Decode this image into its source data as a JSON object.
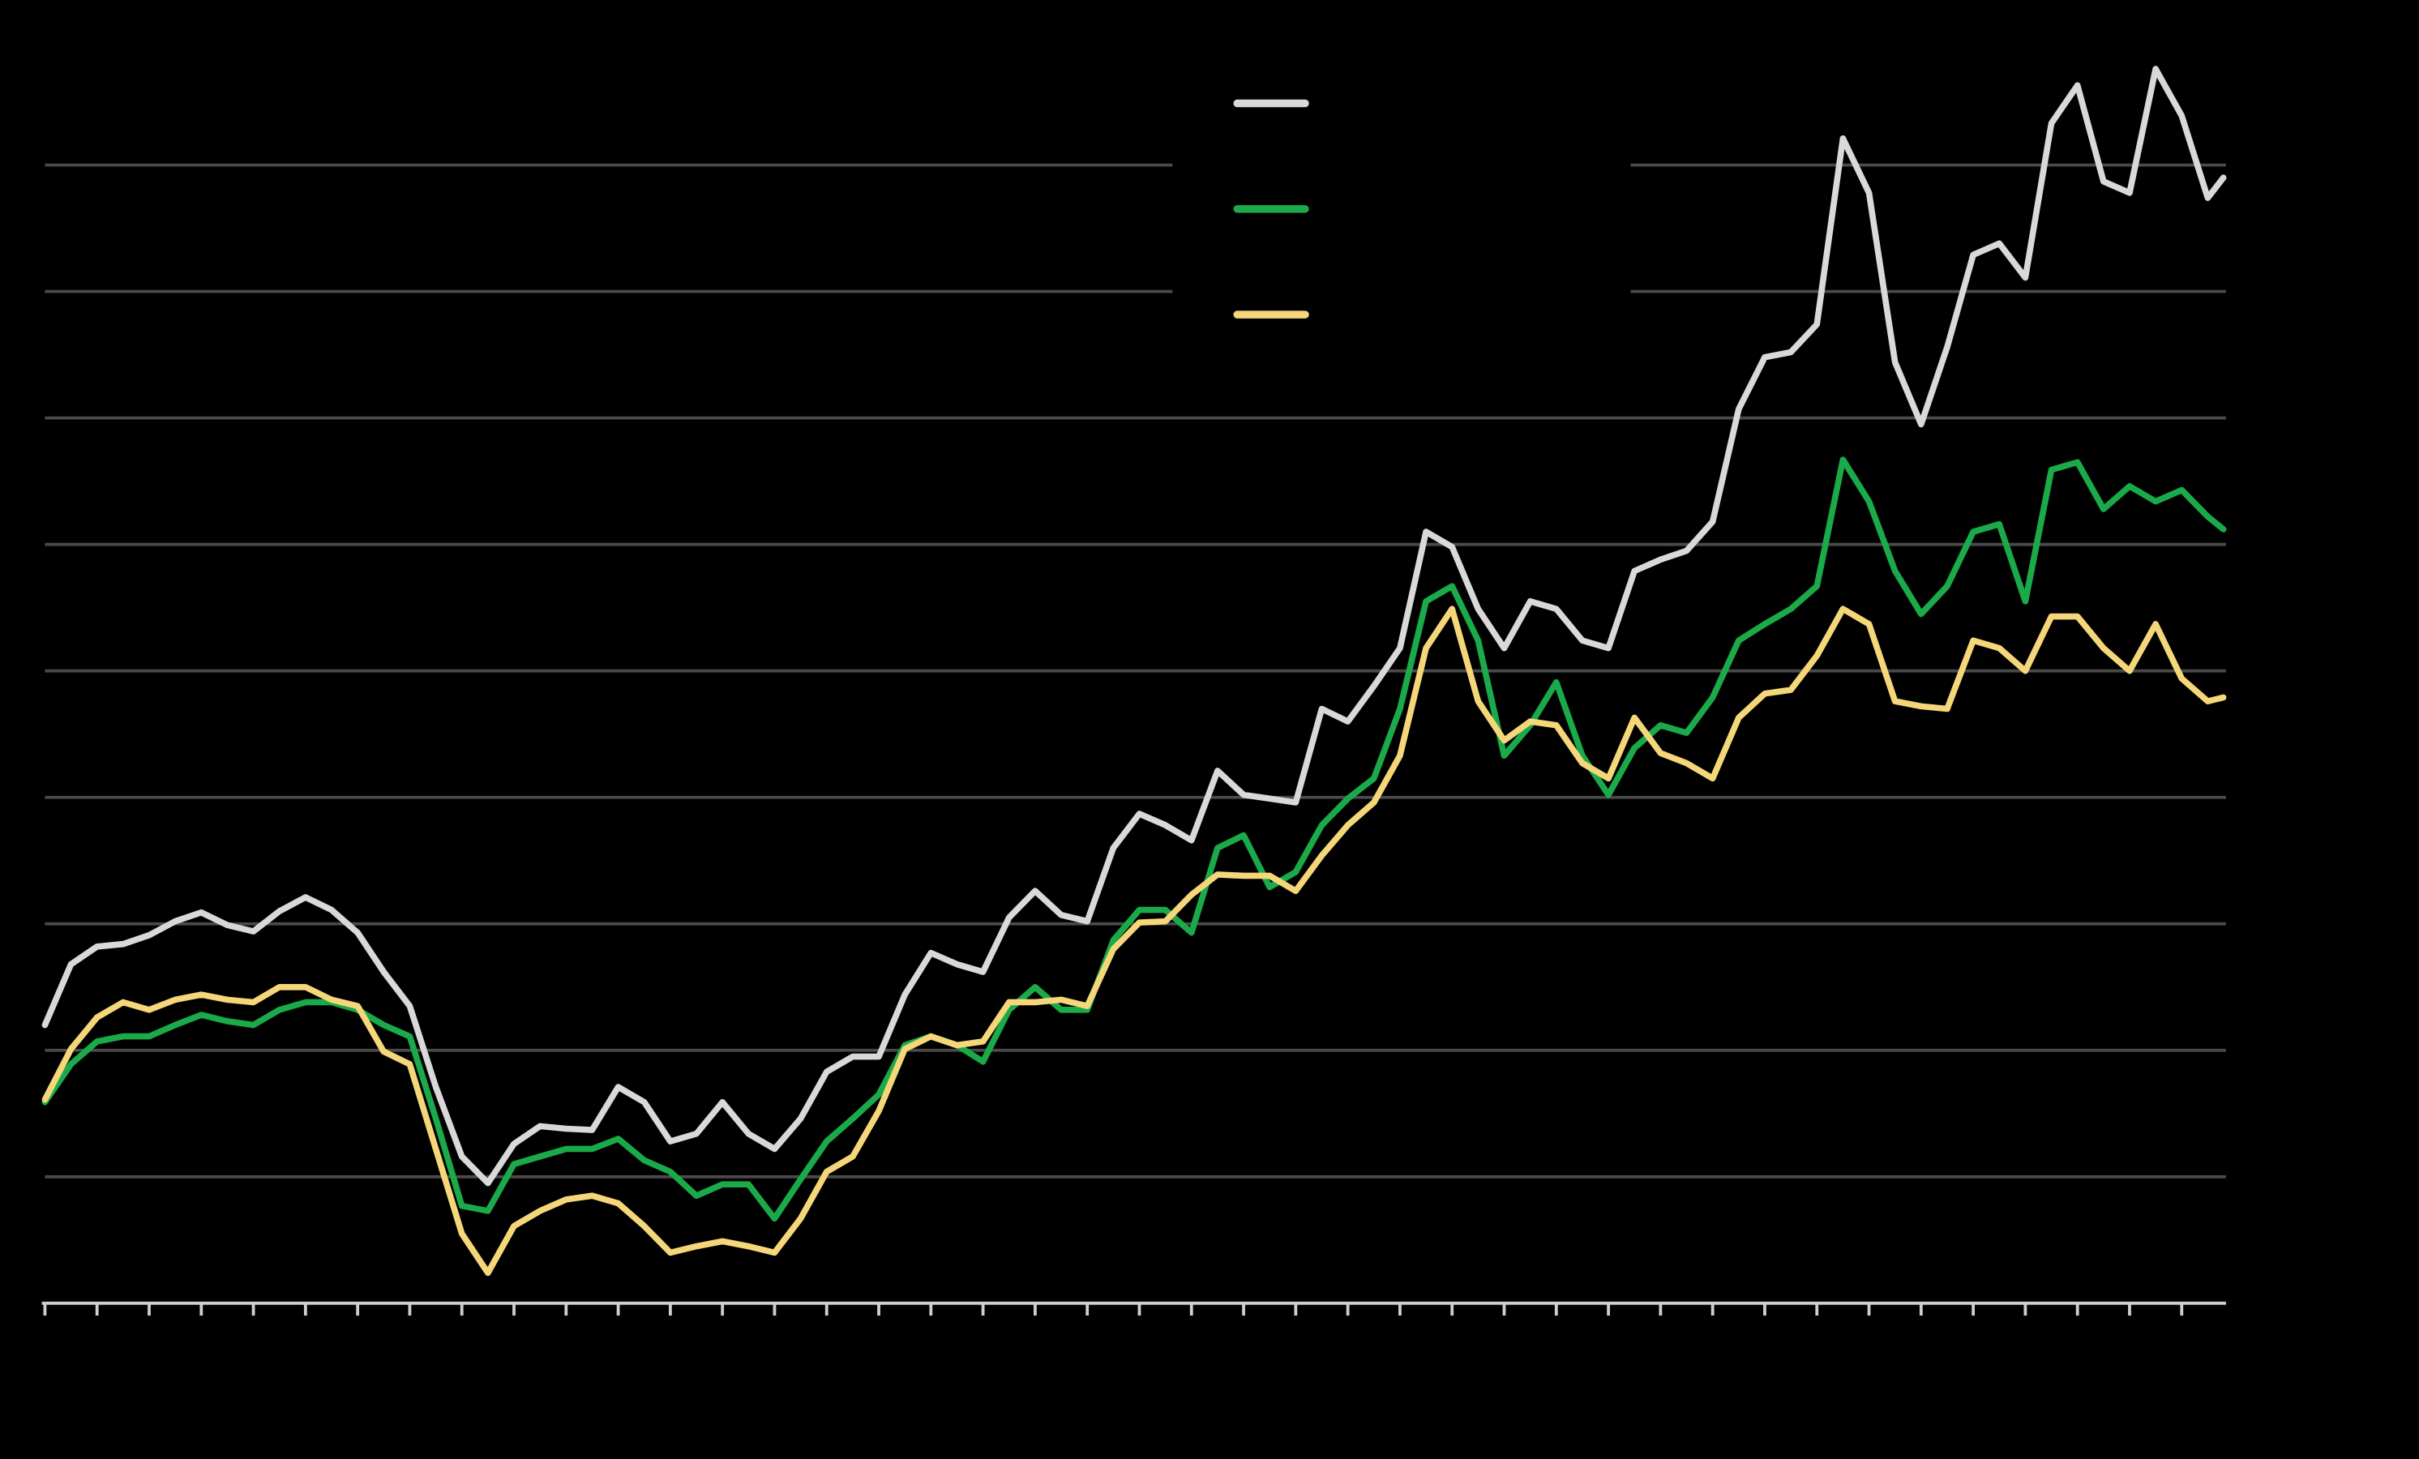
{
  "chart_data": {
    "type": "line",
    "x": [
      0,
      0.5,
      1,
      1.5,
      2,
      2.5,
      3,
      3.5,
      4,
      4.5,
      5,
      5.5,
      6,
      6.5,
      7,
      7.5,
      8,
      8.5,
      9,
      9.5,
      10,
      10.5,
      11,
      11.5,
      12,
      12.5,
      13,
      13.5,
      14,
      14.5,
      15,
      15.5,
      16,
      16.5,
      17,
      17.5,
      18,
      18.5,
      19,
      19.5,
      20,
      20.5,
      21,
      21.5,
      22,
      22.5,
      23,
      23.5,
      24,
      24.5,
      25,
      25.5,
      26,
      26.5,
      27,
      27.5,
      28,
      28.5,
      29,
      29.5,
      30,
      30.5,
      31,
      31.5,
      32,
      32.5,
      33,
      33.5,
      34,
      34.5,
      35,
      35.5,
      36,
      36.5,
      37,
      37.5,
      38,
      38.5,
      39,
      39.5,
      40,
      40.5,
      41,
      41.5,
      41.8
    ],
    "series": [
      {
        "color": "#d9d9d9",
        "values": [
          2.2,
          2.68,
          2.82,
          2.84,
          2.91,
          3.02,
          3.09,
          2.99,
          2.94,
          3.1,
          3.21,
          3.11,
          2.93,
          2.62,
          2.35,
          1.71,
          1.16,
          0.95,
          1.26,
          1.4,
          1.38,
          1.37,
          1.71,
          1.59,
          1.28,
          1.34,
          1.59,
          1.34,
          1.22,
          1.46,
          1.83,
          1.95,
          1.95,
          2.44,
          2.77,
          2.68,
          2.62,
          3.05,
          3.26,
          3.07,
          3.02,
          3.6,
          3.87,
          3.78,
          3.66,
          4.21,
          4.02,
          3.99,
          3.96,
          4.7,
          4.6,
          4.88,
          5.18,
          6.1,
          5.98,
          5.49,
          5.18,
          5.55,
          5.49,
          5.24,
          5.18,
          5.79,
          5.88,
          5.95,
          6.18,
          7.07,
          7.48,
          7.52,
          7.74,
          9.21,
          8.78,
          7.44,
          6.95,
          7.56,
          8.29,
          8.38,
          8.11,
          9.33,
          9.63,
          8.87,
          8.78,
          9.76,
          9.39,
          8.74,
          8.9
        ]
      },
      {
        "color": "#1aaa4a",
        "values": [
          1.59,
          1.89,
          2.07,
          2.11,
          2.11,
          2.2,
          2.28,
          2.23,
          2.2,
          2.32,
          2.38,
          2.38,
          2.32,
          2.2,
          2.11,
          1.46,
          0.77,
          0.73,
          1.1,
          1.16,
          1.22,
          1.22,
          1.3,
          1.13,
          1.04,
          0.85,
          0.94,
          0.94,
          0.67,
          0.98,
          1.28,
          1.46,
          1.65,
          2.04,
          2.11,
          2.04,
          1.91,
          2.32,
          2.5,
          2.32,
          2.32,
          2.87,
          3.11,
          3.11,
          2.93,
          3.6,
          3.7,
          3.29,
          3.41,
          3.78,
          3.99,
          4.15,
          4.7,
          5.55,
          5.67,
          5.24,
          4.33,
          4.57,
          4.91,
          4.33,
          4.02,
          4.39,
          4.57,
          4.51,
          4.79,
          5.24,
          5.37,
          5.49,
          5.67,
          6.67,
          6.34,
          5.79,
          5.45,
          5.67,
          6.1,
          6.16,
          5.55,
          6.59,
          6.65,
          6.28,
          6.46,
          6.34,
          6.43,
          6.22,
          6.12
        ]
      },
      {
        "color": "#f5d77a",
        "values": [
          1.61,
          2.01,
          2.26,
          2.38,
          2.32,
          2.4,
          2.44,
          2.4,
          2.38,
          2.5,
          2.5,
          2.4,
          2.35,
          1.99,
          1.89,
          1.22,
          0.55,
          0.24,
          0.61,
          0.73,
          0.82,
          0.85,
          0.79,
          0.61,
          0.4,
          0.45,
          0.49,
          0.45,
          0.4,
          0.67,
          1.04,
          1.16,
          1.52,
          2.01,
          2.11,
          2.04,
          2.07,
          2.38,
          2.38,
          2.4,
          2.35,
          2.8,
          3.01,
          3.02,
          3.23,
          3.39,
          3.38,
          3.38,
          3.26,
          3.54,
          3.78,
          3.96,
          4.33,
          5.18,
          5.49,
          4.76,
          4.45,
          4.6,
          4.57,
          4.27,
          4.15,
          4.63,
          4.35,
          4.27,
          4.15,
          4.63,
          4.82,
          4.85,
          5.12,
          5.49,
          5.37,
          4.76,
          4.72,
          4.7,
          5.24,
          5.18,
          5.0,
          5.43,
          5.43,
          5.18,
          5.0,
          5.37,
          4.94,
          4.76,
          4.79
        ]
      }
    ],
    "xlim": [
      0,
      41.85
    ],
    "xticks": [
      0,
      1,
      2,
      3,
      4,
      5,
      6,
      7,
      8,
      9,
      10,
      11,
      12,
      13,
      14,
      15,
      16,
      17,
      18,
      19,
      20,
      21,
      22,
      23,
      24,
      25,
      26,
      27,
      28,
      29,
      30,
      31,
      32,
      33,
      34,
      35,
      36,
      37,
      38,
      39,
      40,
      41
    ],
    "ylim": [
      0,
      10
    ],
    "yticks": [
      1,
      2,
      3,
      4,
      5,
      6,
      7,
      8,
      9
    ],
    "grid": true,
    "legend": true
  }
}
